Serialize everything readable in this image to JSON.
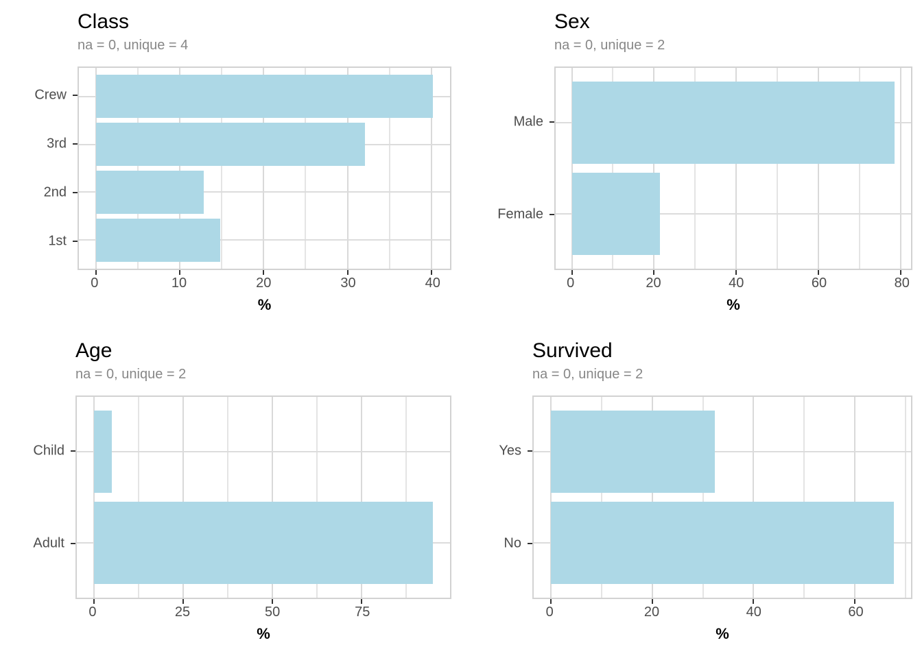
{
  "colors": {
    "bar_fill": "#ADD8E6",
    "grid_major": "#D9D9D9",
    "grid_minor": "#E4E4E4",
    "panel_border": "#D2D2D2",
    "axis_tick": "#333333",
    "tick_label": "#4D4D4D",
    "subtitle": "#878787",
    "title": "#000000"
  },
  "chart_data": [
    {
      "id": "class",
      "type": "bar",
      "orientation": "horizontal",
      "title": "Class",
      "subtitle": "na = 0, unique = 4",
      "xlabel": "%",
      "categories": [
        "Crew",
        "3rd",
        "2nd",
        "1st"
      ],
      "values": [
        40.2,
        32.1,
        12.9,
        14.8
      ],
      "x_major_ticks": [
        0,
        10,
        20,
        30,
        40
      ],
      "x_minor_ticks": [
        5,
        15,
        25,
        35
      ],
      "xlim": [
        -2.01,
        42.21
      ],
      "grid": true,
      "legend": "none"
    },
    {
      "id": "sex",
      "type": "bar",
      "orientation": "horizontal",
      "title": "Sex",
      "subtitle": "na = 0, unique = 2",
      "xlabel": "%",
      "categories": [
        "Male",
        "Female"
      ],
      "values": [
        78.6,
        21.4
      ],
      "x_major_ticks": [
        0,
        20,
        40,
        60,
        80
      ],
      "x_minor_ticks": [
        10,
        30,
        50,
        70
      ],
      "xlim": [
        -3.93,
        82.53
      ],
      "grid": true,
      "legend": "none"
    },
    {
      "id": "age",
      "type": "bar",
      "orientation": "horizontal",
      "title": "Age",
      "subtitle": "na = 0, unique = 2",
      "xlabel": "%",
      "categories": [
        "Child",
        "Adult"
      ],
      "values": [
        5.0,
        95.0
      ],
      "x_major_ticks": [
        0,
        25,
        50,
        75
      ],
      "x_minor_ticks": [
        12.5,
        37.5,
        62.5,
        87.5
      ],
      "xlim": [
        -4.75,
        99.75
      ],
      "grid": true,
      "legend": "none"
    },
    {
      "id": "survived",
      "type": "bar",
      "orientation": "horizontal",
      "title": "Survived",
      "subtitle": "na = 0, unique = 2",
      "xlabel": "%",
      "categories": [
        "Yes",
        "No"
      ],
      "values": [
        32.3,
        67.7
      ],
      "x_major_ticks": [
        0,
        20,
        40,
        60
      ],
      "x_minor_ticks": [
        10,
        30,
        50,
        70
      ],
      "xlim": [
        -3.39,
        71.09
      ],
      "grid": true,
      "legend": "none"
    }
  ]
}
